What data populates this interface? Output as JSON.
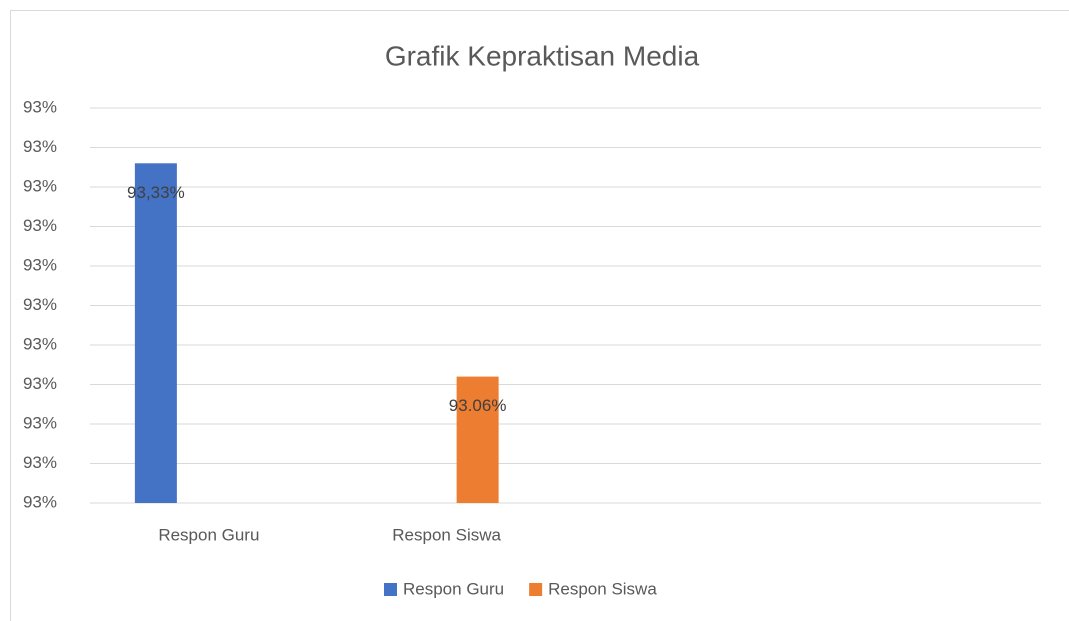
{
  "chart_data": {
    "type": "bar",
    "title": "Grafik Kepraktisan Media",
    "categories": [
      "Respon Guru",
      "Respon Siswa",
      null,
      null
    ],
    "series": [
      {
        "name": "Respon Guru",
        "color": "#4472c4",
        "values": [
          93.33,
          null,
          null,
          null
        ],
        "value_labels": [
          "93,33%",
          null,
          null,
          null
        ]
      },
      {
        "name": "Respon Siswa",
        "color": "#ed7d31",
        "values": [
          null,
          93.06,
          null,
          null
        ],
        "value_labels": [
          null,
          "93.06%",
          null,
          null
        ]
      }
    ],
    "ylim": [
      92.9,
      93.4
    ],
    "yticks": [
      {
        "value": 92.9,
        "label": "93%"
      },
      {
        "value": 92.95,
        "label": "93%"
      },
      {
        "value": 93.0,
        "label": "93%"
      },
      {
        "value": 93.05,
        "label": "93%"
      },
      {
        "value": 93.1,
        "label": "93%"
      },
      {
        "value": 93.15,
        "label": "93%"
      },
      {
        "value": 93.2,
        "label": "93%"
      },
      {
        "value": 93.25,
        "label": "93%"
      },
      {
        "value": 93.3,
        "label": "93%"
      },
      {
        "value": 93.35,
        "label": "93%"
      },
      {
        "value": 93.4,
        "label": "93%"
      }
    ],
    "grid": true,
    "legend": "bottom"
  }
}
